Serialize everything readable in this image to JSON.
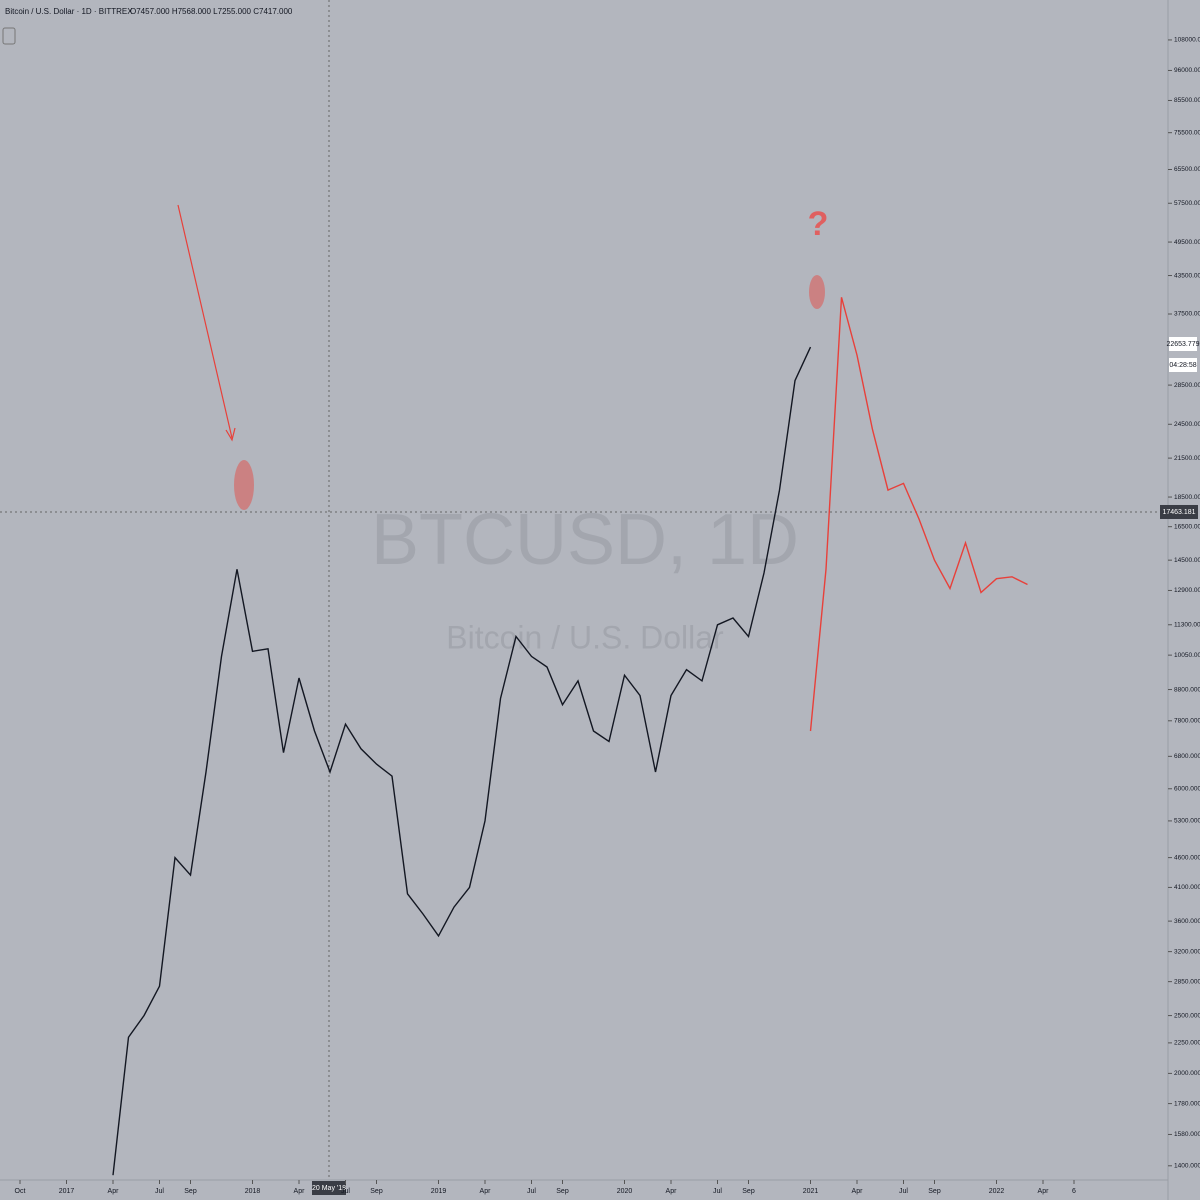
{
  "header": {
    "symbol": "Bitcoin / U.S. Dollar · 1D · BITTREX",
    "ohlc": "O7457.000 H7568.000 L7255.000 C7417.000"
  },
  "chart_data": {
    "type": "line",
    "log_scale": true,
    "watermark": {
      "title": "BTCUSD, 1D",
      "subtitle": "Bitcoin / U.S. Dollar"
    },
    "annotation": "?",
    "crosshair": {
      "x_label": "20 May '18",
      "price": 17463.181,
      "price_label": "17463.181"
    },
    "last_price": {
      "label": "22653.779",
      "countdown": "04:28:58"
    },
    "ylim": [
      1300,
      126000
    ],
    "yticks": [
      {
        "value": 108000,
        "label": "108000.000"
      },
      {
        "value": 96000,
        "label": "96000.000"
      },
      {
        "value": 85500,
        "label": "85500.000"
      },
      {
        "value": 75500,
        "label": "75500.000"
      },
      {
        "value": 65500,
        "label": "65500.000"
      },
      {
        "value": 57500,
        "label": "57500.000"
      },
      {
        "value": 49500,
        "label": "49500.000"
      },
      {
        "value": 43500,
        "label": "43500.000"
      },
      {
        "value": 37500,
        "label": "37500.000"
      },
      {
        "value": 28500,
        "label": "28500.000"
      },
      {
        "value": 24500,
        "label": "24500.000"
      },
      {
        "value": 21500,
        "label": "21500.000"
      },
      {
        "value": 18500,
        "label": "18500.000"
      },
      {
        "value": 16500,
        "label": "16500.000"
      },
      {
        "value": 14500,
        "label": "14500.000"
      },
      {
        "value": 12900,
        "label": "12900.000"
      },
      {
        "value": 11300,
        "label": "11300.000"
      },
      {
        "value": 10050,
        "label": "10050.000"
      },
      {
        "value": 8800,
        "label": "8800.000"
      },
      {
        "value": 7800,
        "label": "7800.000"
      },
      {
        "value": 6800,
        "label": "6800.000"
      },
      {
        "value": 6000,
        "label": "6000.000"
      },
      {
        "value": 5300,
        "label": "5300.000"
      },
      {
        "value": 4600,
        "label": "4600.000"
      },
      {
        "value": 4100,
        "label": "4100.000"
      },
      {
        "value": 3600,
        "label": "3600.000"
      },
      {
        "value": 3200,
        "label": "3200.000"
      },
      {
        "value": 2850,
        "label": "2850.000"
      },
      {
        "value": 2500,
        "label": "2500.000"
      },
      {
        "value": 2250,
        "label": "2250.000"
      },
      {
        "value": 2000,
        "label": "2000.000"
      },
      {
        "value": 1780,
        "label": "1780.000"
      },
      {
        "value": 1580,
        "label": "1580.000"
      },
      {
        "value": 1400,
        "label": "1400.000"
      }
    ],
    "xticks": [
      {
        "value": "2016-10",
        "label": "Oct"
      },
      {
        "value": "2017-01",
        "label": "2017"
      },
      {
        "value": "2017-04",
        "label": "Apr"
      },
      {
        "value": "2017-07",
        "label": "Jul"
      },
      {
        "value": "2017-09",
        "label": "Sep"
      },
      {
        "value": "2018-01",
        "label": "2018"
      },
      {
        "value": "2018-04",
        "label": "Apr"
      },
      {
        "value": "2018-07",
        "label": "Jul"
      },
      {
        "value": "2018-09",
        "label": "Sep"
      },
      {
        "value": "2019-01",
        "label": "2019"
      },
      {
        "value": "2019-04",
        "label": "Apr"
      },
      {
        "value": "2019-07",
        "label": "Jul"
      },
      {
        "value": "2019-09",
        "label": "Sep"
      },
      {
        "value": "2020-01",
        "label": "2020"
      },
      {
        "value": "2020-04",
        "label": "Apr"
      },
      {
        "value": "2020-07",
        "label": "Jul"
      },
      {
        "value": "2020-09",
        "label": "Sep"
      },
      {
        "value": "2021-01",
        "label": "2021"
      },
      {
        "value": "2021-04",
        "label": "Apr"
      },
      {
        "value": "2021-07",
        "label": "Jul"
      },
      {
        "value": "2021-09",
        "label": "Sep"
      },
      {
        "value": "2022-01",
        "label": "2022"
      },
      {
        "value": "2022-04",
        "label": "Apr"
      },
      {
        "value": "2022-06",
        "label": "6"
      }
    ],
    "series": [
      {
        "color": "#131722",
        "x": [
          "2017-04",
          "2017-05",
          "2017-06",
          "2017-07",
          "2017-08",
          "2017-09",
          "2017-10",
          "2017-11",
          "2017-12",
          "2018-01",
          "2018-02",
          "2018-03",
          "2018-04",
          "2018-05",
          "2018-06",
          "2018-07",
          "2018-08",
          "2018-09",
          "2018-10",
          "2018-11",
          "2018-12",
          "2019-01",
          "2019-02",
          "2019-03",
          "2019-04",
          "2019-05",
          "2019-06",
          "2019-07",
          "2019-08",
          "2019-09",
          "2019-10",
          "2019-11",
          "2019-12",
          "2020-01",
          "2020-02",
          "2020-03",
          "2020-04",
          "2020-05",
          "2020-06",
          "2020-07",
          "2020-08",
          "2020-09",
          "2020-10",
          "2020-11",
          "2020-12",
          "2021-01"
        ],
        "values": [
          1350,
          2300,
          2500,
          2800,
          4600,
          4300,
          6400,
          10000,
          14000,
          10200,
          10300,
          6900,
          9200,
          7500,
          6400,
          7700,
          7000,
          6600,
          6300,
          4000,
          3700,
          3400,
          3800,
          4100,
          5300,
          8500,
          10800,
          10000,
          9600,
          8300,
          9100,
          7500,
          7200,
          9300,
          8600,
          6400,
          8600,
          9500,
          9100,
          11300,
          11600,
          10800,
          13800,
          19000,
          29000,
          33000
        ]
      },
      {
        "color": "#e8403a",
        "x": [
          "2021-01",
          "2021-02",
          "2021-03",
          "2021-04",
          "2021-05",
          "2021-06",
          "2021-07",
          "2021-08",
          "2021-09",
          "2021-10",
          "2021-11",
          "2021-12",
          "2022-01",
          "2022-02",
          "2022-03"
        ],
        "values": [
          7500,
          14000,
          40000,
          32000,
          24000,
          19000,
          19500,
          17000,
          14500,
          13000,
          15500,
          12800,
          13500,
          13600,
          13200
        ]
      }
    ]
  }
}
